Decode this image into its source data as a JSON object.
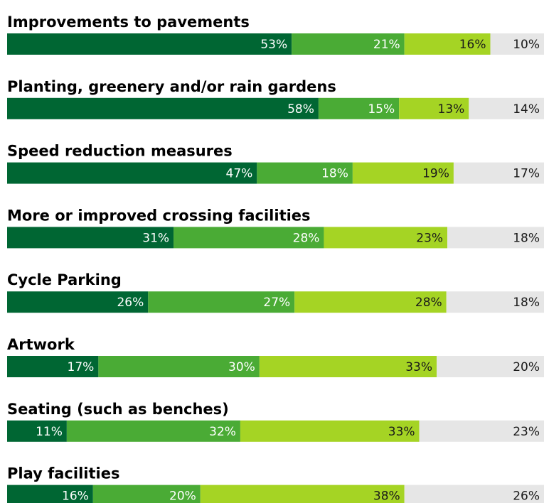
{
  "chart_data": {
    "type": "stacked-bar",
    "categories": [
      "Improvements to pavements",
      "Planting, greenery and/or rain gardens",
      "Speed reduction measures",
      "More or improved crossing facilities",
      "Cycle Parking",
      "Artwork",
      "Seating (such as benches)",
      "Play facilities"
    ],
    "series": [
      {
        "color": "#006633",
        "text_color": "#ffffff",
        "values": [
          53,
          58,
          47,
          31,
          26,
          17,
          11,
          16
        ],
        "value_labels": [
          "53%",
          "58%",
          "47%",
          "31%",
          "26%",
          "17%",
          "11%",
          "16%"
        ]
      },
      {
        "color": "#4aab35",
        "text_color": "#ffffff",
        "values": [
          21,
          15,
          18,
          28,
          27,
          30,
          32,
          20
        ],
        "value_labels": [
          "21%",
          "15%",
          "18%",
          "28%",
          "27%",
          "30%",
          "32%",
          "20%"
        ]
      },
      {
        "color": "#a5d424",
        "text_color": "#1a1a1a",
        "values": [
          16,
          13,
          19,
          23,
          28,
          33,
          33,
          38
        ],
        "value_labels": [
          "16%",
          "13%",
          "19%",
          "23%",
          "28%",
          "33%",
          "33%",
          "38%"
        ]
      },
      {
        "color": "#e6e6e6",
        "text_color": "#1a1a1a",
        "values": [
          10,
          14,
          17,
          18,
          18,
          20,
          23,
          26
        ],
        "value_labels": [
          "10%",
          "14%",
          "17%",
          "18%",
          "18%",
          "20%",
          "23%",
          "26%"
        ]
      }
    ]
  }
}
